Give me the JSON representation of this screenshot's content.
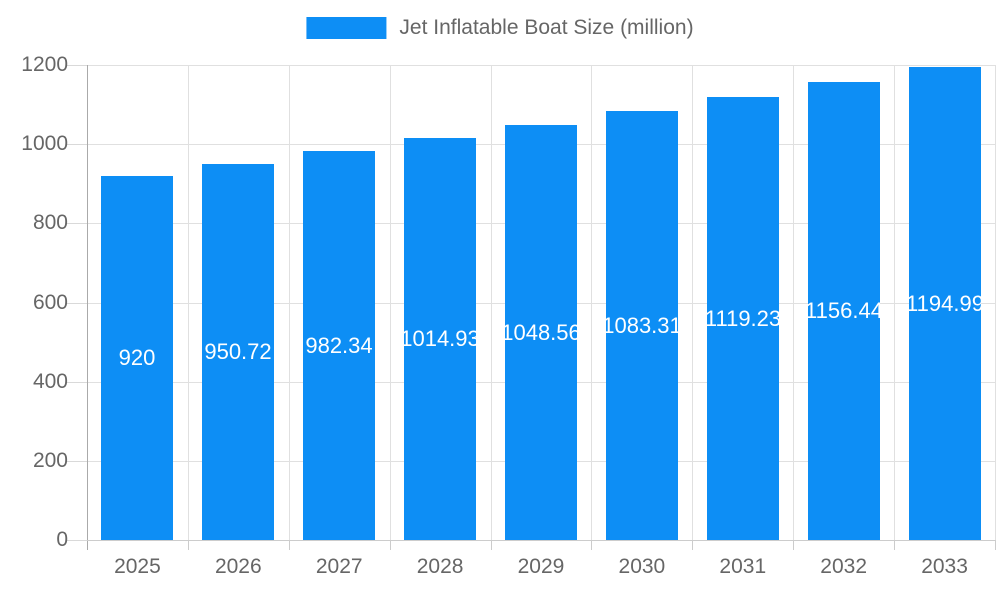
{
  "legend": {
    "label": "Jet Inflatable Boat Size (million)"
  },
  "chart_data": {
    "type": "bar",
    "title": "Jet Inflatable Boat Size (million)",
    "categories": [
      "2025",
      "2026",
      "2027",
      "2028",
      "2029",
      "2030",
      "2031",
      "2032",
      "2033"
    ],
    "values": [
      920,
      950.72,
      982.34,
      1014.93,
      1048.56,
      1083.31,
      1119.23,
      1156.44,
      1194.99
    ],
    "series_name": "Jet Inflatable Boat Size (million)",
    "xlabel": "",
    "ylabel": "",
    "ylim": [
      0,
      1200
    ],
    "yticks": [
      0,
      200,
      400,
      600,
      800,
      1000,
      1200
    ],
    "grid": true,
    "legend_position": "top-center",
    "value_labels": "inside-center-white",
    "colors": {
      "bar": "#0d8ef5",
      "bar_label": "#ffffff",
      "axis_text": "#666666",
      "legend_text": "#666666",
      "grid_line": "#e0e0e0",
      "y_tick_line": "#d9d9d9",
      "x_tick_line": "#cccccc",
      "y_axis_line": "#aaaaaa",
      "x_axis_line": "#cccccc",
      "background": "#ffffff"
    }
  }
}
